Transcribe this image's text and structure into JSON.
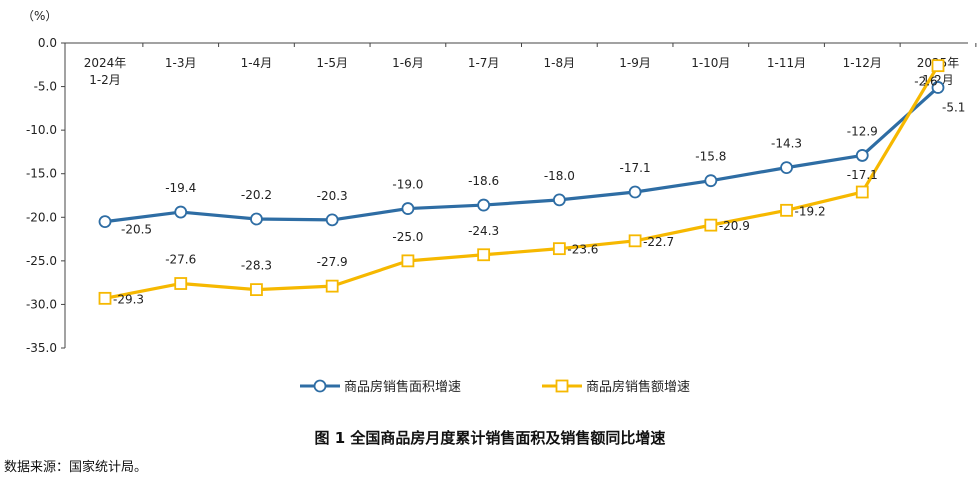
{
  "chart_data": {
    "type": "line",
    "y_unit_label": "（%）",
    "categories": [
      [
        "2024年",
        "1-2月"
      ],
      [
        "1-3月"
      ],
      [
        "1-4月"
      ],
      [
        "1-5月"
      ],
      [
        "1-6月"
      ],
      [
        "1-7月"
      ],
      [
        "1-8月"
      ],
      [
        "1-9月"
      ],
      [
        "1-10月"
      ],
      [
        "1-11月"
      ],
      [
        "1-12月"
      ],
      [
        "2025年",
        "1-2月"
      ]
    ],
    "y_ticks": [
      "0.0",
      "-5.0",
      "-10.0",
      "-15.0",
      "-20.0",
      "-25.0",
      "-30.0",
      "-35.0"
    ],
    "ylim": [
      -35,
      0
    ],
    "series": [
      {
        "name": "商品房销售面积增速",
        "color": "#2e6da4",
        "marker": "circle",
        "values": [
          -20.5,
          -19.4,
          -20.2,
          -20.3,
          -19.0,
          -18.6,
          -18.0,
          -17.1,
          -15.8,
          -14.3,
          -12.9,
          -5.1
        ],
        "labels": [
          "-20.5",
          "-19.4",
          "-20.2",
          "-20.3",
          "-19.0",
          "-18.6",
          "-18.0",
          "-17.1",
          "-15.8",
          "-14.3",
          "-12.9",
          "-5.1"
        ]
      },
      {
        "name": "商品房销售额增速",
        "color": "#f6b800",
        "marker": "square",
        "values": [
          -29.3,
          -27.6,
          -28.3,
          -27.9,
          -25.0,
          -24.3,
          -23.6,
          -22.7,
          -20.9,
          -19.2,
          -17.1,
          -2.6
        ],
        "labels": [
          "-29.3",
          "-27.6",
          "-28.3",
          "-27.9",
          "-25.0",
          "-24.3",
          "-23.6",
          "-22.7",
          "-20.9",
          "-19.2",
          "-17.1",
          "-2.6"
        ]
      }
    ],
    "title": "图 1  全国商品房月度累计销售面积及销售额同比增速"
  },
  "source_note": "数据来源：国家统计局。"
}
